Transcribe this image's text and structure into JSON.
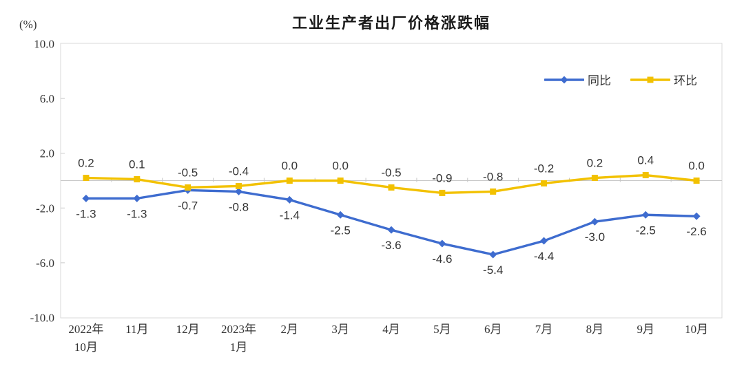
{
  "page": {
    "title": "工业生产者出厂价格涨跌幅",
    "unit_label": "(%)"
  },
  "chart_data": {
    "type": "line",
    "title": "工业生产者出厂价格涨跌幅",
    "unit": "(%)",
    "categories": [
      "2022年\n10月",
      "11月",
      "12月",
      "2023年\n1月",
      "2月",
      "3月",
      "4月",
      "5月",
      "6月",
      "7月",
      "8月",
      "9月",
      "10月"
    ],
    "series": [
      {
        "name": "同比",
        "color": "#3E6CCF",
        "marker": "diamond",
        "label_position": "below",
        "values": [
          -1.3,
          -1.3,
          -0.7,
          -0.8,
          -1.4,
          -2.5,
          -3.6,
          -4.6,
          -5.4,
          -4.4,
          -3.0,
          -2.5,
          -2.6
        ]
      },
      {
        "name": "环比",
        "color": "#F2C100",
        "marker": "square",
        "label_position": "above",
        "values": [
          0.2,
          0.1,
          -0.5,
          -0.4,
          0.0,
          0.0,
          -0.5,
          -0.9,
          -0.8,
          -0.2,
          0.2,
          0.4,
          0.0
        ]
      }
    ],
    "y_ticks": [
      10.0,
      6.0,
      2.0,
      -2.0,
      -6.0,
      -10.0
    ],
    "ylim": [
      -10.0,
      10.0
    ],
    "grid": false,
    "legend_position": "top-right",
    "colors": {
      "axis_text": "#333333",
      "plot_border": "#D9D9D9",
      "zero_line": "#C6C6C6",
      "tick": "#C9C9C9"
    }
  }
}
